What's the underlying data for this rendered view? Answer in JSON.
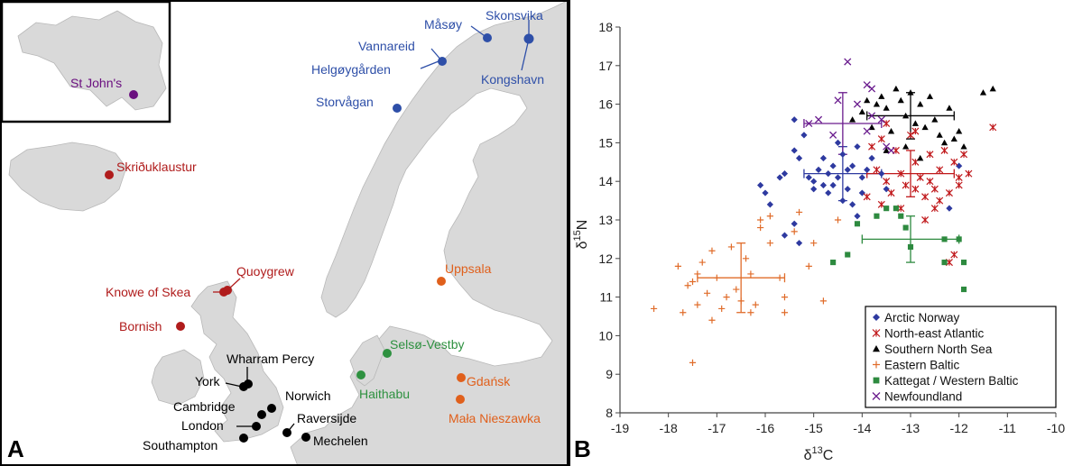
{
  "panels": {
    "map_letter": "A",
    "chart_letter": "B"
  },
  "map": {
    "colors": {
      "sea": "#ffffff",
      "land": "#d9d9d9",
      "arctic_norway": "#2e4fa8",
      "north_east_atlantic": "#b01c1c",
      "southern_north_sea": "#000000",
      "eastern_baltic": "#e0601c",
      "kattegat_western_baltic": "#2e9140",
      "newfoundland": "#6b1080"
    },
    "sites": [
      {
        "name": "Måsøy",
        "group": "arctic_norway"
      },
      {
        "name": "Skonsvika",
        "group": "arctic_norway"
      },
      {
        "name": "Vannareid",
        "group": "arctic_norway"
      },
      {
        "name": "Helgøygården",
        "group": "arctic_norway"
      },
      {
        "name": "Kongshavn",
        "group": "arctic_norway"
      },
      {
        "name": "Storvågan",
        "group": "arctic_norway"
      },
      {
        "name": "St John's",
        "group": "newfoundland"
      },
      {
        "name": "Skriðuklaustur",
        "group": "north_east_atlantic"
      },
      {
        "name": "Quoygrew",
        "group": "north_east_atlantic"
      },
      {
        "name": "Knowe of Skea",
        "group": "north_east_atlantic"
      },
      {
        "name": "Bornish",
        "group": "north_east_atlantic"
      },
      {
        "name": "Uppsala",
        "group": "eastern_baltic"
      },
      {
        "name": "Gdańsk",
        "group": "eastern_baltic"
      },
      {
        "name": "Mała Nieszawka",
        "group": "eastern_baltic"
      },
      {
        "name": "Selsø-Vestby",
        "group": "kattegat_western_baltic"
      },
      {
        "name": "Haithabu",
        "group": "kattegat_western_baltic"
      },
      {
        "name": "Wharram Percy",
        "group": "southern_north_sea"
      },
      {
        "name": "York",
        "group": "southern_north_sea"
      },
      {
        "name": "Norwich",
        "group": "southern_north_sea"
      },
      {
        "name": "Cambridge",
        "group": "southern_north_sea"
      },
      {
        "name": "London",
        "group": "southern_north_sea"
      },
      {
        "name": "Raversijde",
        "group": "southern_north_sea"
      },
      {
        "name": "Southampton",
        "group": "southern_north_sea"
      },
      {
        "name": "Mechelen",
        "group": "southern_north_sea"
      }
    ]
  },
  "chart_data": {
    "type": "scatter",
    "xlabel_base": "δ",
    "xlabel_sup": "13",
    "xlabel_elem": "C",
    "ylabel_base": "δ",
    "ylabel_sup": "15",
    "ylabel_elem": "N",
    "xlim": [
      -19,
      -10
    ],
    "ylim": [
      8,
      18
    ],
    "x_ticks": [
      -19,
      -18,
      -17,
      -16,
      -15,
      -14,
      -13,
      -12,
      -11,
      -10
    ],
    "y_ticks": [
      8,
      9,
      10,
      11,
      12,
      13,
      14,
      15,
      16,
      17,
      18
    ],
    "grid": false,
    "legend_position": "bottom-right",
    "series": [
      {
        "name": "Arctic Norway",
        "marker": "diamond",
        "color": "#2e3aa0",
        "mean": [
          -14.4,
          14.2
        ],
        "sd": [
          0.8,
          0.7
        ],
        "points": [
          [
            -16.1,
            13.9
          ],
          [
            -16.0,
            13.7
          ],
          [
            -15.7,
            14.1
          ],
          [
            -15.6,
            14.2
          ],
          [
            -15.4,
            14.8
          ],
          [
            -15.4,
            15.6
          ],
          [
            -15.3,
            14.6
          ],
          [
            -15.2,
            15.2
          ],
          [
            -15.1,
            14.1
          ],
          [
            -15.0,
            13.8
          ],
          [
            -15.0,
            14.0
          ],
          [
            -14.9,
            14.3
          ],
          [
            -14.8,
            13.9
          ],
          [
            -14.8,
            14.6
          ],
          [
            -14.7,
            14.2
          ],
          [
            -14.7,
            13.7
          ],
          [
            -14.6,
            14.4
          ],
          [
            -14.6,
            13.9
          ],
          [
            -14.5,
            15.0
          ],
          [
            -14.5,
            14.1
          ],
          [
            -14.4,
            13.5
          ],
          [
            -14.4,
            14.7
          ],
          [
            -14.3,
            14.3
          ],
          [
            -14.3,
            13.8
          ],
          [
            -14.2,
            14.4
          ],
          [
            -14.2,
            13.4
          ],
          [
            -14.1,
            13.1
          ],
          [
            -14.1,
            14.9
          ],
          [
            -14.0,
            14.1
          ],
          [
            -14.0,
            13.7
          ],
          [
            -13.9,
            14.3
          ],
          [
            -13.8,
            14.6
          ],
          [
            -13.6,
            14.2
          ],
          [
            -13.5,
            13.8
          ],
          [
            -15.9,
            13.4
          ],
          [
            -15.6,
            12.6
          ],
          [
            -15.4,
            12.9
          ],
          [
            -15.3,
            12.4
          ],
          [
            -12.0,
            14.4
          ],
          [
            -12.2,
            13.3
          ]
        ]
      },
      {
        "name": "North-east Atlantic",
        "marker": "x-star",
        "color": "#c0181b",
        "mean": [
          -13.0,
          14.2
        ],
        "sd": [
          0.9,
          0.6
        ],
        "points": [
          [
            -13.9,
            13.6
          ],
          [
            -13.8,
            14.9
          ],
          [
            -13.7,
            14.3
          ],
          [
            -13.6,
            15.1
          ],
          [
            -13.5,
            14.0
          ],
          [
            -13.4,
            13.7
          ],
          [
            -13.3,
            14.8
          ],
          [
            -13.2,
            14.2
          ],
          [
            -13.1,
            13.9
          ],
          [
            -13.0,
            15.2
          ],
          [
            -12.9,
            14.5
          ],
          [
            -12.9,
            13.8
          ],
          [
            -12.8,
            14.1
          ],
          [
            -12.7,
            13.6
          ],
          [
            -12.6,
            14.7
          ],
          [
            -12.6,
            14.0
          ],
          [
            -12.5,
            13.8
          ],
          [
            -12.4,
            14.3
          ],
          [
            -12.4,
            13.5
          ],
          [
            -12.3,
            14.8
          ],
          [
            -12.2,
            13.7
          ],
          [
            -12.1,
            14.5
          ],
          [
            -12.0,
            14.1
          ],
          [
            -12.0,
            13.9
          ],
          [
            -11.9,
            14.7
          ],
          [
            -11.8,
            14.2
          ],
          [
            -11.3,
            15.4
          ],
          [
            -13.6,
            13.4
          ],
          [
            -13.2,
            13.3
          ],
          [
            -12.7,
            13.0
          ],
          [
            -12.2,
            11.9
          ],
          [
            -12.1,
            12.1
          ],
          [
            -13.5,
            15.5
          ],
          [
            -12.9,
            15.3
          ],
          [
            -12.5,
            13.3
          ]
        ]
      },
      {
        "name": "Southern North Sea",
        "marker": "triangle",
        "color": "#000000",
        "mean": [
          -13.0,
          15.7
        ],
        "sd": [
          0.9,
          0.6
        ],
        "points": [
          [
            -14.2,
            15.6
          ],
          [
            -14.0,
            15.8
          ],
          [
            -13.9,
            16.1
          ],
          [
            -13.8,
            15.4
          ],
          [
            -13.7,
            16.0
          ],
          [
            -13.6,
            16.2
          ],
          [
            -13.5,
            15.9
          ],
          [
            -13.4,
            15.3
          ],
          [
            -13.3,
            16.4
          ],
          [
            -13.2,
            16.1
          ],
          [
            -13.1,
            15.7
          ],
          [
            -13.0,
            16.3
          ],
          [
            -12.9,
            15.5
          ],
          [
            -12.8,
            16.0
          ],
          [
            -12.7,
            15.4
          ],
          [
            -12.6,
            16.2
          ],
          [
            -12.5,
            15.6
          ],
          [
            -12.4,
            15.2
          ],
          [
            -12.3,
            15.0
          ],
          [
            -12.2,
            15.9
          ],
          [
            -12.1,
            15.1
          ],
          [
            -12.0,
            15.3
          ],
          [
            -11.9,
            14.9
          ],
          [
            -11.5,
            16.3
          ],
          [
            -11.3,
            16.4
          ],
          [
            -13.5,
            14.8
          ],
          [
            -13.1,
            14.9
          ],
          [
            -12.8,
            14.6
          ]
        ]
      },
      {
        "name": "Eastern Baltic",
        "marker": "plus",
        "color": "#e06c2a",
        "mean": [
          -16.5,
          11.5
        ],
        "sd": [
          0.9,
          0.9
        ],
        "points": [
          [
            -18.3,
            10.7
          ],
          [
            -17.8,
            11.8
          ],
          [
            -17.7,
            10.6
          ],
          [
            -17.6,
            11.3
          ],
          [
            -17.5,
            11.4
          ],
          [
            -17.5,
            9.3
          ],
          [
            -17.4,
            10.8
          ],
          [
            -17.4,
            11.6
          ],
          [
            -17.3,
            11.9
          ],
          [
            -17.2,
            11.1
          ],
          [
            -17.1,
            10.4
          ],
          [
            -17.1,
            12.2
          ],
          [
            -17.0,
            11.5
          ],
          [
            -16.9,
            10.7
          ],
          [
            -16.8,
            11.0
          ],
          [
            -16.7,
            12.3
          ],
          [
            -16.6,
            11.2
          ],
          [
            -16.5,
            10.9
          ],
          [
            -16.4,
            12.0
          ],
          [
            -16.3,
            11.6
          ],
          [
            -16.3,
            10.6
          ],
          [
            -16.2,
            10.8
          ],
          [
            -16.1,
            13.0
          ],
          [
            -15.9,
            13.1
          ],
          [
            -15.9,
            12.4
          ],
          [
            -15.7,
            11.5
          ],
          [
            -15.6,
            10.6
          ],
          [
            -15.6,
            11.0
          ],
          [
            -15.4,
            12.7
          ],
          [
            -15.3,
            13.2
          ],
          [
            -15.1,
            11.8
          ],
          [
            -15.0,
            12.4
          ],
          [
            -14.8,
            10.9
          ],
          [
            -14.5,
            13.0
          ],
          [
            -16.1,
            12.8
          ]
        ]
      },
      {
        "name": "Kattegat / Western Baltic",
        "marker": "square",
        "color": "#2d8a3f",
        "mean": [
          -13.0,
          12.5
        ],
        "sd": [
          1.0,
          0.6
        ],
        "points": [
          [
            -14.1,
            12.9
          ],
          [
            -13.7,
            13.1
          ],
          [
            -13.5,
            13.3
          ],
          [
            -13.3,
            13.3
          ],
          [
            -13.2,
            13.1
          ],
          [
            -13.1,
            12.8
          ],
          [
            -13.0,
            12.3
          ],
          [
            -14.3,
            12.1
          ],
          [
            -14.6,
            11.9
          ],
          [
            -12.3,
            12.5
          ],
          [
            -12.3,
            11.9
          ],
          [
            -12.0,
            12.5
          ],
          [
            -11.9,
            11.9
          ],
          [
            -11.9,
            11.2
          ]
        ]
      },
      {
        "name": "Newfoundland",
        "marker": "x",
        "color": "#6a1c8e",
        "mean": [
          -14.4,
          15.5
        ],
        "sd": [
          0.8,
          0.8
        ],
        "points": [
          [
            -15.1,
            15.5
          ],
          [
            -14.9,
            15.6
          ],
          [
            -14.6,
            15.2
          ],
          [
            -14.5,
            16.1
          ],
          [
            -14.3,
            17.1
          ],
          [
            -14.1,
            16.0
          ],
          [
            -13.9,
            16.5
          ],
          [
            -13.8,
            16.4
          ],
          [
            -13.8,
            15.7
          ],
          [
            -13.6,
            15.6
          ],
          [
            -13.5,
            14.9
          ],
          [
            -13.4,
            14.8
          ],
          [
            -13.9,
            15.3
          ]
        ]
      }
    ]
  }
}
